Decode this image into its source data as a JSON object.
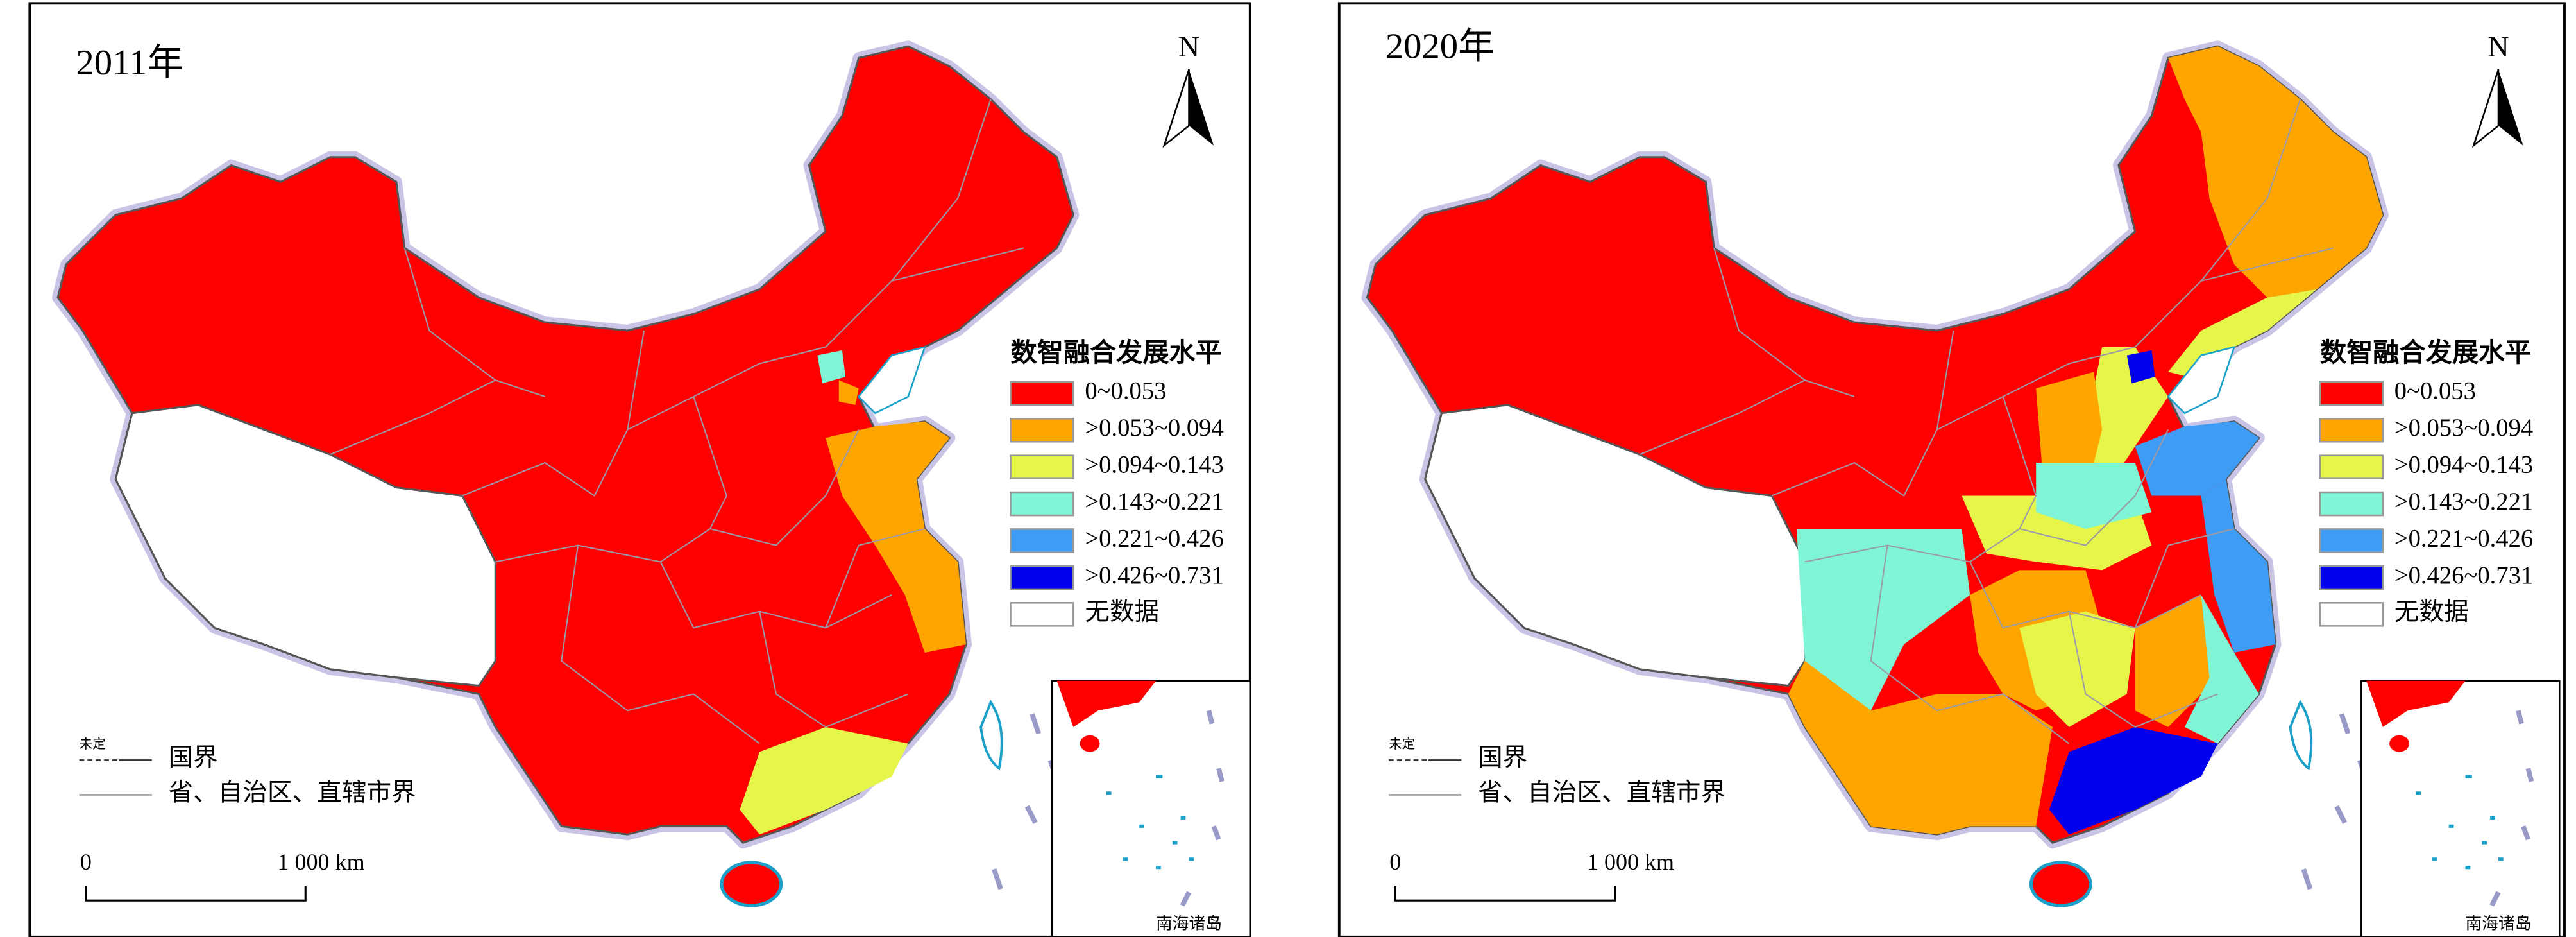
{
  "panels": [
    {
      "title": "2011年"
    },
    {
      "title": "2020年"
    }
  ],
  "north": "N",
  "legend": {
    "title": "数智融合发展水平",
    "items": [
      {
        "label": "0~0.053",
        "color": "#ff0000"
      },
      {
        "label": ">0.053~0.094",
        "color": "#ffa500"
      },
      {
        "label": ">0.094~0.143",
        "color": "#e6f54a"
      },
      {
        "label": ">0.143~0.221",
        "color": "#7ff5d6"
      },
      {
        "label": ">0.221~0.426",
        "color": "#3f9cf5"
      },
      {
        "label": ">0.426~0.731",
        "color": "#0000ee"
      },
      {
        "label": "无数据",
        "color": "#ffffff"
      }
    ]
  },
  "boundary_legend": {
    "undetermined": "未定",
    "national": "国界",
    "provincial": "省、自治区、直辖市界"
  },
  "scale_bar": {
    "start": "0",
    "end": "1 000 km"
  },
  "inset_label": "南海诸岛"
}
